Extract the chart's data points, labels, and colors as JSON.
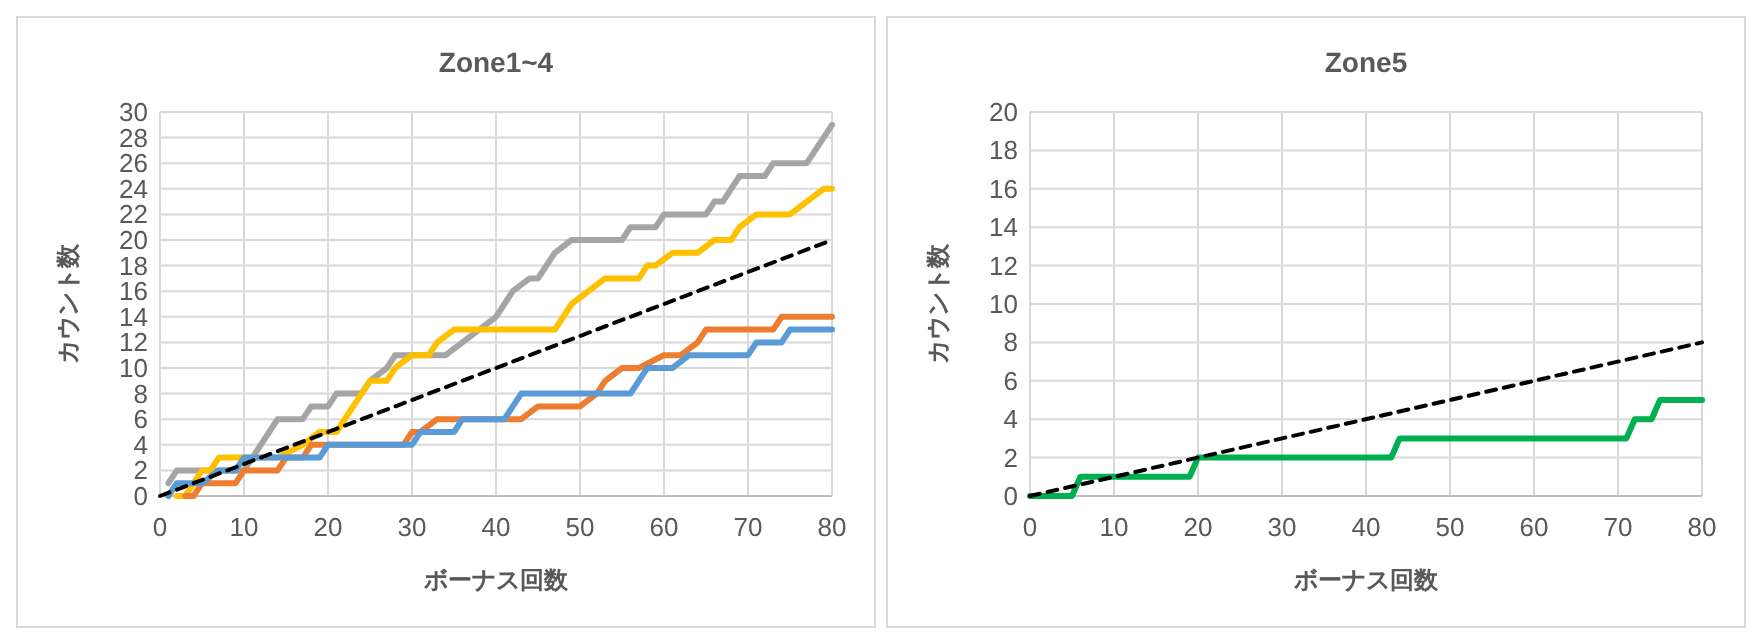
{
  "chart_data": [
    {
      "type": "line",
      "title": "Zone1~4",
      "xlabel": "ボーナス回数",
      "ylabel": "カウント数",
      "xlim": [
        0,
        80
      ],
      "xticks": [
        0,
        10,
        20,
        30,
        40,
        50,
        60,
        70,
        80
      ],
      "ylim": [
        0,
        30
      ],
      "yticks": [
        0,
        2,
        4,
        6,
        8,
        10,
        12,
        14,
        16,
        18,
        20,
        22,
        24,
        26,
        28,
        30
      ],
      "grid": true,
      "marker": "none",
      "series": [
        {
          "color": "#a5a5a5",
          "x": [
            1,
            2,
            10,
            11,
            12,
            13,
            14,
            17,
            18,
            20,
            21,
            24,
            25,
            27,
            28,
            34,
            36,
            38,
            40,
            41,
            42,
            44,
            45,
            46,
            47,
            49,
            55,
            56,
            59,
            60,
            65,
            66,
            67,
            69,
            72,
            73,
            77,
            78,
            79,
            80
          ],
          "values": [
            1,
            2,
            2,
            3,
            4,
            5,
            6,
            6,
            7,
            7,
            8,
            8,
            9,
            10,
            11,
            11,
            12,
            13,
            14,
            15,
            16,
            17,
            17,
            18,
            19,
            20,
            20,
            21,
            21,
            22,
            22,
            23,
            23,
            25,
            25,
            26,
            26,
            27,
            28,
            29
          ]
        },
        {
          "color": "#ffc000",
          "x": [
            2,
            3,
            4,
            5,
            6,
            7,
            8,
            9,
            14,
            17,
            19,
            21,
            22,
            23,
            24,
            25,
            27,
            28,
            30,
            32,
            33,
            35,
            47,
            48,
            49,
            51,
            53,
            57,
            58,
            59,
            61,
            64,
            66,
            68,
            69,
            71,
            75,
            77,
            79,
            80
          ],
          "values": [
            0,
            0,
            1,
            2,
            2,
            3,
            3,
            3,
            3,
            4,
            5,
            5,
            6,
            7,
            8,
            9,
            9,
            10,
            11,
            11,
            12,
            13,
            13,
            14,
            15,
            16,
            17,
            17,
            18,
            18,
            19,
            19,
            20,
            20,
            21,
            22,
            22,
            23,
            24,
            24
          ]
        },
        {
          "color": "#ed7d31",
          "x": [
            3,
            4,
            5,
            9,
            10,
            14,
            15,
            17,
            18,
            29,
            30,
            31,
            33,
            43,
            45,
            50,
            52,
            53,
            55,
            57,
            60,
            62,
            64,
            65,
            73,
            74,
            80
          ],
          "values": [
            0,
            0,
            1,
            1,
            2,
            2,
            3,
            3,
            4,
            4,
            5,
            5,
            6,
            6,
            7,
            7,
            8,
            9,
            10,
            10,
            11,
            11,
            12,
            13,
            13,
            14,
            14
          ]
        },
        {
          "color": "#5b9bd5",
          "x": [
            1,
            2,
            5,
            7,
            9,
            10,
            19,
            20,
            30,
            31,
            35,
            36,
            41,
            42,
            43,
            56,
            57,
            58,
            61,
            63,
            70,
            71,
            74,
            75,
            80
          ],
          "values": [
            0,
            1,
            1,
            2,
            2,
            3,
            3,
            4,
            4,
            5,
            5,
            6,
            6,
            7,
            8,
            8,
            9,
            10,
            10,
            11,
            11,
            12,
            12,
            13,
            13
          ]
        },
        {
          "color": "#000000",
          "line_style": "dashed",
          "x": [
            0,
            80
          ],
          "values": [
            0,
            20
          ]
        }
      ]
    },
    {
      "type": "line",
      "title": "Zone5",
      "xlabel": "ボーナス回数",
      "ylabel": "カウント数",
      "xlim": [
        0,
        80
      ],
      "xticks": [
        0,
        10,
        20,
        30,
        40,
        50,
        60,
        70,
        80
      ],
      "ylim": [
        0,
        20
      ],
      "yticks": [
        0,
        2,
        4,
        6,
        8,
        10,
        12,
        14,
        16,
        18,
        20
      ],
      "grid": true,
      "marker": "none",
      "series": [
        {
          "color": "#00b050",
          "x": [
            0,
            5,
            6,
            19,
            20,
            43,
            44,
            71,
            72,
            74,
            75,
            80
          ],
          "values": [
            0,
            0,
            1,
            1,
            2,
            2,
            3,
            3,
            4,
            4,
            5,
            5
          ]
        },
        {
          "color": "#000000",
          "line_style": "dashed",
          "x": [
            0,
            80
          ],
          "values": [
            0,
            8
          ]
        }
      ]
    }
  ]
}
